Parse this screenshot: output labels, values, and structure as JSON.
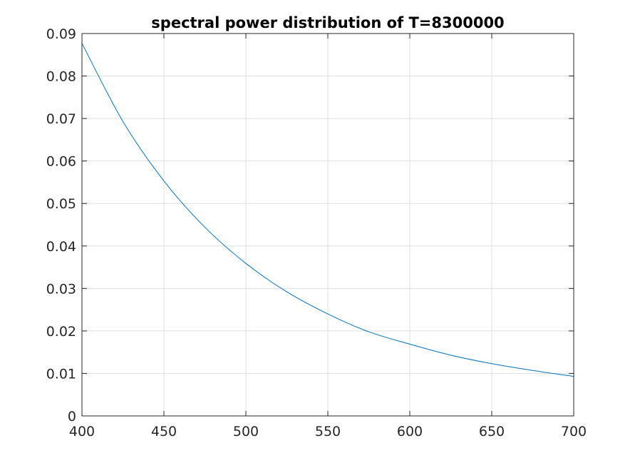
{
  "chart_data": {
    "type": "line",
    "title": "spectral power distribution of T=8300000",
    "xlabel": "",
    "ylabel": "",
    "xlim": [
      400,
      700
    ],
    "ylim": [
      0,
      0.09
    ],
    "grid": true,
    "xticks": [
      400,
      450,
      500,
      550,
      600,
      650,
      700
    ],
    "xtick_labels": [
      "400",
      "450",
      "500",
      "550",
      "600",
      "650",
      "700"
    ],
    "yticks": [
      0,
      0.01,
      0.02,
      0.03,
      0.04,
      0.05,
      0.06,
      0.07,
      0.08,
      0.09
    ],
    "ytick_labels": [
      "0",
      "0.01",
      "0.02",
      "0.03",
      "0.04",
      "0.05",
      "0.06",
      "0.07",
      "0.08",
      "0.09"
    ],
    "series": [
      {
        "color": "#0072bd",
        "x": [
          400,
          425,
          450,
          475,
          500,
          525,
          550,
          575,
          600,
          625,
          650,
          675,
          700
        ],
        "y": [
          0.0877,
          0.0693,
          0.0553,
          0.0444,
          0.0359,
          0.0292,
          0.024,
          0.0198,
          0.0169,
          0.0143,
          0.0123,
          0.0107,
          0.0093
        ]
      }
    ]
  }
}
